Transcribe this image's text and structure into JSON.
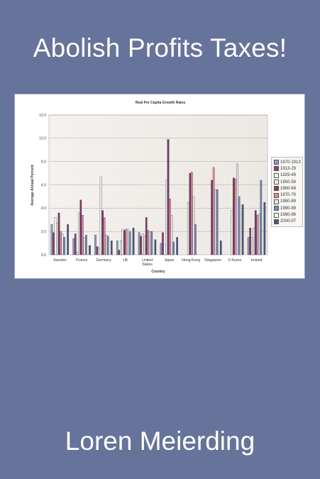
{
  "cover": {
    "title": "Abolish Profits Taxes!",
    "author": "Loren Meierding"
  },
  "chart_data": {
    "type": "bar",
    "title": "Real Per Capita Growth Rates",
    "xlabel": "Country",
    "ylabel": "Average Annual Percent",
    "ylim": [
      0,
      12
    ],
    "yticks": [
      "0.0",
      "2.0",
      "4.0",
      "6.0",
      "8.0",
      "10.0",
      "12.0"
    ],
    "grid": true,
    "legend_position": "right",
    "categories": [
      "Sweden",
      "France",
      "Germany",
      "UK",
      "United States",
      "Japan",
      "Hong Kong",
      "Singapore",
      "S Korea",
      "Ireland"
    ],
    "series": [
      {
        "name": "1870-1913",
        "color": "#8f9ac0",
        "values": [
          2.6,
          1.4,
          1.7,
          1.2,
          1.9,
          1.0,
          null,
          null,
          null,
          1.5
        ]
      },
      {
        "name": "1913-29",
        "color": "#8e3d7a",
        "values": [
          1.9,
          1.8,
          0.7,
          0.4,
          1.6,
          1.9,
          null,
          null,
          null,
          2.3
        ]
      },
      {
        "name": "1929-49",
        "color": "#f7f7ee",
        "values": [
          3.2,
          0.2,
          0.6,
          1.2,
          1.8,
          0.9,
          null,
          null,
          null,
          1.5
        ]
      },
      {
        "name": "1950-59",
        "color": "#eef3ef",
        "values": [
          2.7,
          3.6,
          6.7,
          2.2,
          1.6,
          6.4,
          4.5,
          null,
          3.8,
          2.3
        ]
      },
      {
        "name": "1960-69",
        "color": "#7c3a6e",
        "values": [
          3.6,
          4.7,
          3.8,
          2.1,
          3.2,
          9.9,
          7.0,
          6.4,
          6.6,
          3.8
        ]
      },
      {
        "name": "1970-79",
        "color": "#e88a9c",
        "values": [
          2.0,
          3.4,
          3.2,
          2.2,
          2.1,
          4.8,
          7.1,
          7.5,
          6.5,
          3.4
        ]
      },
      {
        "name": "1980-89",
        "color": "#e6ebef",
        "values": [
          1.8,
          1.5,
          1.7,
          2.2,
          2.0,
          3.4,
          5.0,
          5.6,
          7.8,
          3.5
        ]
      },
      {
        "name": "1990-99",
        "color": "#6f8bb6",
        "values": [
          1.5,
          1.7,
          1.6,
          2.0,
          2.0,
          1.1,
          2.6,
          5.6,
          5.0,
          6.4
        ]
      },
      {
        "name": "1990-99 ",
        "color": "#ffffff",
        "values": [
          null,
          null,
          null,
          null,
          null,
          null,
          null,
          null,
          null,
          null
        ]
      },
      {
        "name": "2000-07",
        "color": "#4a5580",
        "values": [
          2.6,
          0.8,
          1.2,
          2.3,
          1.3,
          1.5,
          null,
          1.2,
          4.3,
          4.5
        ]
      }
    ]
  }
}
